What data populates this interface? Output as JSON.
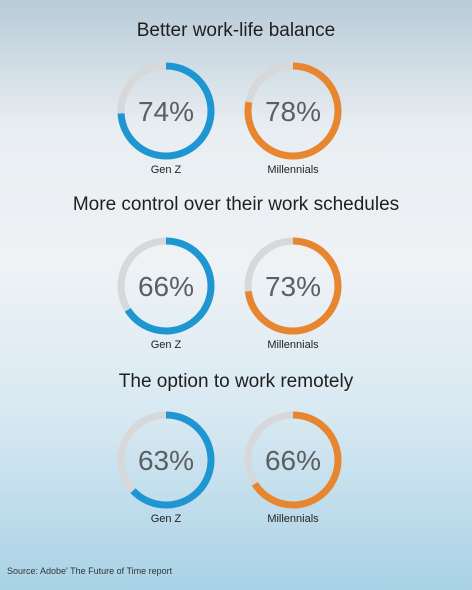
{
  "colors": {
    "track": "#d6d8da",
    "gen_z": "#1e96d2",
    "millennials": "#e8852f"
  },
  "chart_data": [
    {
      "type": "pie",
      "title": "Better work-life balance",
      "categories": [
        "Gen Z",
        "Millennials"
      ],
      "values": [
        74,
        78
      ],
      "labels": [
        "74%",
        "78%"
      ]
    },
    {
      "type": "pie",
      "title": "More control over their work schedules",
      "categories": [
        "Gen Z",
        "Millennials"
      ],
      "values": [
        66,
        73
      ],
      "labels": [
        "66%",
        "73%"
      ]
    },
    {
      "type": "pie",
      "title": "The option to work remotely",
      "categories": [
        "Gen Z",
        "Millennials"
      ],
      "values": [
        63,
        66
      ],
      "labels": [
        "63%",
        "66%"
      ]
    }
  ],
  "source": "Source: Adobe' The Future of Time report"
}
